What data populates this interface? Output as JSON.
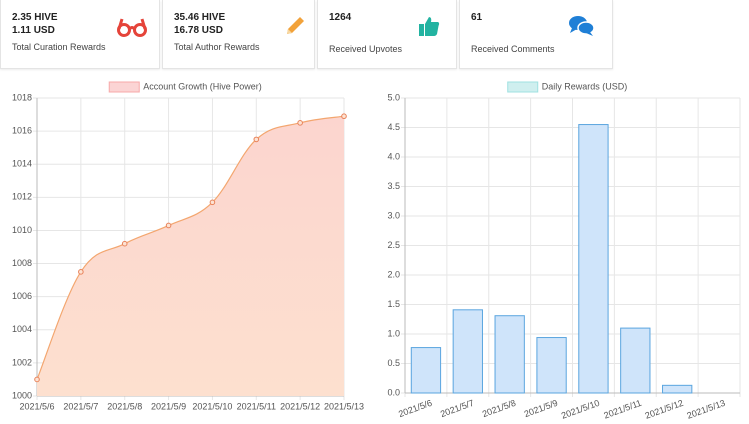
{
  "cards": [
    {
      "lines": [
        "2.35 HIVE",
        "1.11 USD"
      ],
      "label": "Total Curation Rewards"
    },
    {
      "lines": [
        "35.46 HIVE",
        "16.78 USD"
      ],
      "label": "Total Author Rewards"
    },
    {
      "lines": [
        "1264"
      ],
      "label": "Received Upvotes"
    },
    {
      "lines": [
        "61"
      ],
      "label": "Received Comments"
    }
  ],
  "chart_data": [
    {
      "type": "line",
      "legend": "Account Growth (Hive Power)",
      "color": "#f3a66f",
      "fill": "#fde0cf",
      "legend_color": "#f7a9a9",
      "categories": [
        "2021/5/6",
        "2021/5/7",
        "2021/5/8",
        "2021/5/9",
        "2021/5/10",
        "2021/5/11",
        "2021/5/12",
        "2021/5/13"
      ],
      "values": [
        1001.0,
        1007.5,
        1009.2,
        1010.3,
        1011.7,
        1015.5,
        1016.5,
        1016.9
      ],
      "ylim": [
        1000,
        1018
      ],
      "yticks": [
        1000,
        1002,
        1004,
        1006,
        1008,
        1010,
        1012,
        1014,
        1016,
        1018
      ],
      "grid": true
    },
    {
      "type": "bar",
      "legend": "Daily Rewards (USD)",
      "color": "#cfe4fa",
      "border": "#5aa5df",
      "legend_color": "#9fe0e0",
      "categories": [
        "2021/5/6",
        "2021/5/7",
        "2021/5/8",
        "2021/5/9",
        "2021/5/10",
        "2021/5/11",
        "2021/5/12",
        "2021/5/13"
      ],
      "values": [
        0.77,
        1.41,
        1.31,
        0.94,
        4.55,
        1.1,
        0.13,
        0
      ],
      "ylim": [
        0,
        5
      ],
      "yticks": [
        {
          "value": 0,
          "label": "0.0"
        },
        0.5,
        {
          "value": 1,
          "label": "1.0"
        },
        1.5,
        {
          "value": 2,
          "label": "2.0"
        },
        2.5,
        {
          "value": 3,
          "label": "3.0"
        },
        3.5,
        {
          "value": 4,
          "label": "4.0"
        },
        4.5,
        {
          "value": 5,
          "label": "5.0"
        }
      ],
      "grid": true
    }
  ]
}
